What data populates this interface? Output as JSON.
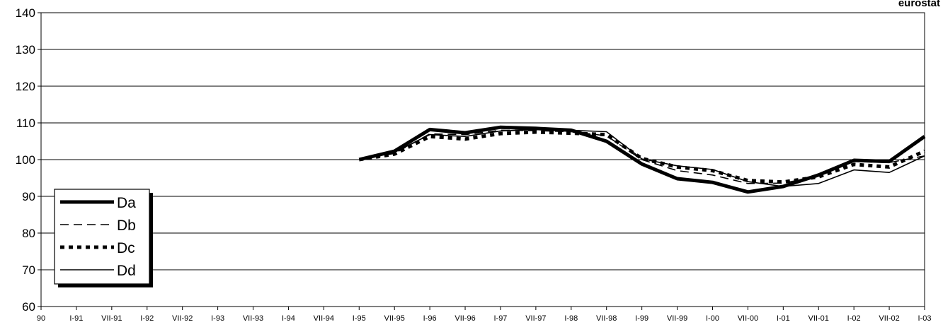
{
  "brand": "eurostat",
  "chart_data": {
    "type": "line",
    "title": "",
    "xlabel": "",
    "ylabel": "",
    "ylim": [
      60,
      140
    ],
    "yticks": [
      60,
      70,
      80,
      90,
      100,
      110,
      120,
      130,
      140
    ],
    "grid": true,
    "legend_position": "bottom-left",
    "categories": [
      "90",
      "I-91",
      "VII-91",
      "I-92",
      "VII-92",
      "I-93",
      "VII-93",
      "I-94",
      "VII-94",
      "I-95",
      "VII-95",
      "I-96",
      "VII-96",
      "I-97",
      "VII-97",
      "I-98",
      "VII-98",
      "I-99",
      "VII-99",
      "I-00",
      "VII-00",
      "I-01",
      "VII-01",
      "I-02",
      "VII-02",
      "I-03"
    ],
    "series": [
      {
        "name": "Da",
        "style": "thick-solid",
        "values": [
          null,
          null,
          null,
          null,
          null,
          null,
          null,
          null,
          null,
          100,
          102.3,
          108.2,
          107.3,
          108.8,
          108.5,
          108.0,
          105.0,
          98.8,
          94.8,
          93.8,
          91.2,
          92.7,
          95.8,
          99.8,
          99.5,
          106.3
        ]
      },
      {
        "name": "Db",
        "style": "dashed",
        "values": [
          null,
          null,
          null,
          null,
          null,
          null,
          null,
          null,
          null,
          100,
          101.7,
          107.0,
          106.8,
          108.0,
          107.9,
          107.6,
          106.5,
          100.0,
          97.0,
          95.8,
          93.5,
          93.6,
          95.5,
          99.5,
          99.2,
          101.0
        ]
      },
      {
        "name": "Dc",
        "style": "thick-dotted",
        "values": [
          null,
          null,
          null,
          null,
          null,
          null,
          null,
          null,
          null,
          100,
          101.5,
          106.3,
          105.6,
          107.1,
          107.5,
          107.2,
          106.8,
          100.3,
          98.0,
          97.0,
          94.3,
          93.9,
          95.3,
          98.7,
          98.0,
          102.3
        ]
      },
      {
        "name": "Dd",
        "style": "thin-solid",
        "values": [
          null,
          null,
          null,
          null,
          null,
          null,
          null,
          null,
          null,
          100,
          102.0,
          106.8,
          106.3,
          107.8,
          108.2,
          108.0,
          107.6,
          100.2,
          98.3,
          97.3,
          94.0,
          92.7,
          93.5,
          97.2,
          96.5,
          101.0
        ]
      }
    ]
  }
}
